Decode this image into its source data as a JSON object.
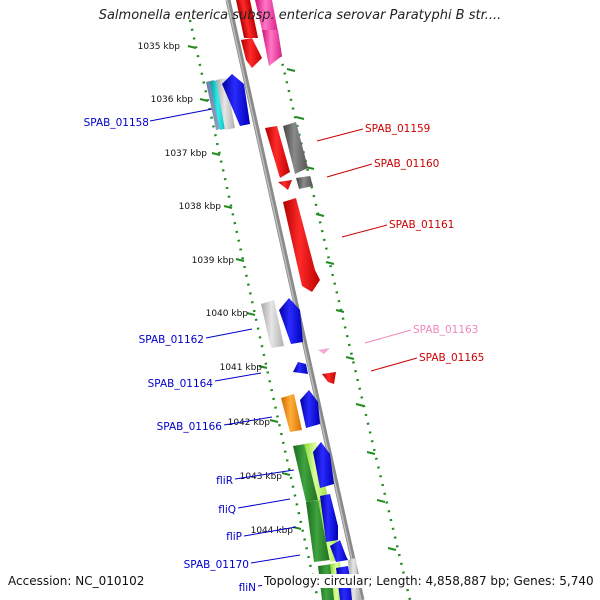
{
  "header": {
    "title": "Salmonella enterica subsp. enterica serovar Paratyphi B str...."
  },
  "footer": {
    "accession": "Accession: NC_010102",
    "summary": "Topology: circular; Length: 4,858,887 bp; Genes: 5,740"
  },
  "ticks": [
    "1035 kbp",
    "1036 kbp",
    "1037 kbp",
    "1038 kbp",
    "1039 kbp",
    "1040 kbp",
    "1041 kbp",
    "1042 kbp",
    "1043 kbp",
    "1044 kbp"
  ],
  "gene_labels": {
    "left": [
      "SPAB_01158",
      "SPAB_01162",
      "SPAB_01164",
      "SPAB_01166",
      "fliR",
      "fliQ",
      "fliP",
      "SPAB_01170",
      "fliN"
    ],
    "right": [
      "SPAB_01159",
      "SPAB_01160",
      "SPAB_01161",
      "SPAB_01163",
      "SPAB_01165"
    ]
  },
  "colors": {
    "title": "#222222",
    "tick_text": "#111111",
    "tick_marks": "#228B22",
    "backbone": "#888888",
    "left_labels": "#0000cc",
    "right_labels": "#cc0000",
    "right_label_pale": "#ee88bb",
    "gene_red": "#ff0000",
    "gene_blue": "#0000ee",
    "gene_gray": "#666666",
    "gene_lightgray": "#c8c8c8",
    "gene_green": "#2e8b2e",
    "gene_lightgreen": "#aaff44",
    "gene_orange": "#ff8800",
    "gene_cyan": "#00cccc",
    "gene_pink": "#ff44aa"
  }
}
